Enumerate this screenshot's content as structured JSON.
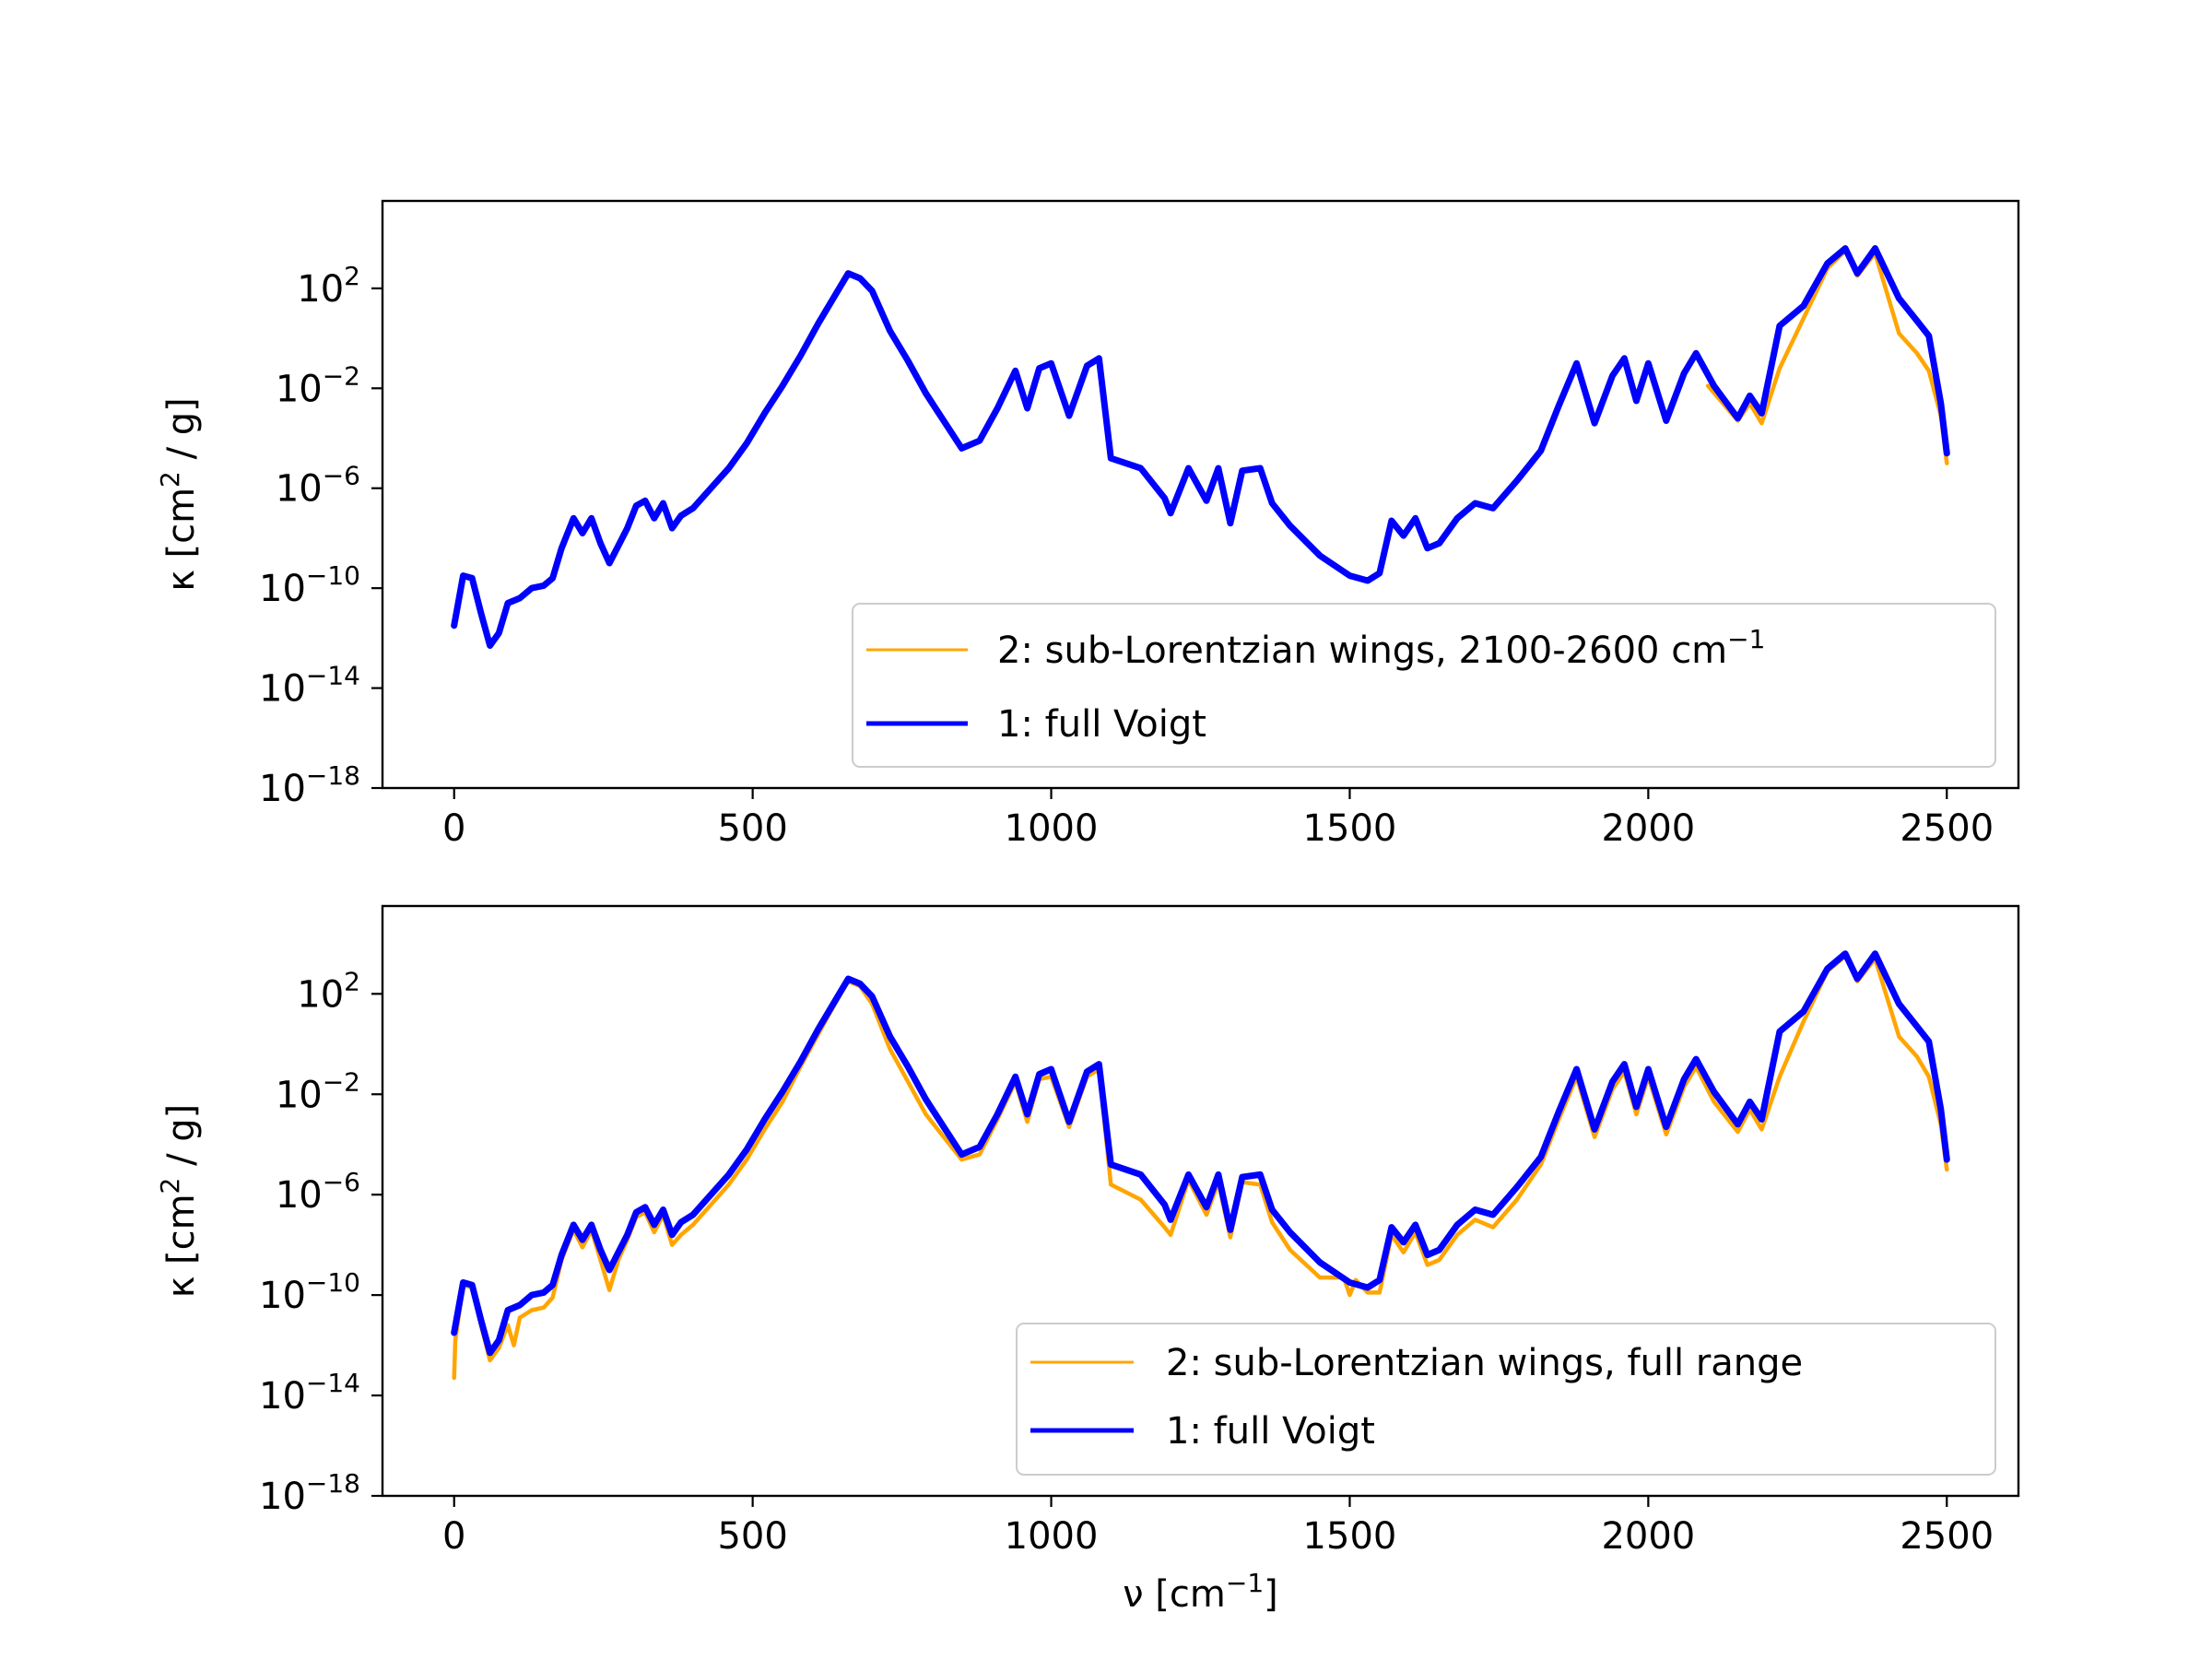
{
  "colors": {
    "voigt": "#0000ff",
    "sublorentz": "#ffa500"
  },
  "chart_data": [
    {
      "type": "line",
      "title": "",
      "xlabel": "",
      "ylabel": "κ [cm² / g]",
      "ylabel_parts": {
        "base": "κ [cm",
        "sup": "2",
        "rest": " / g]"
      },
      "xlim": [
        -120,
        2620
      ],
      "ylim": [
        -18,
        5.5
      ],
      "yscale": "log",
      "x_ticks": [
        0,
        500,
        1000,
        1500,
        2000,
        2500
      ],
      "x_tick_labels": [
        "0",
        "500",
        "1000",
        "1500",
        "2000",
        "2500"
      ],
      "y_ticks": [
        2,
        -2,
        -6,
        -10,
        -14,
        -18
      ],
      "y_tick_labels": [
        {
          "base": "10",
          "exp": "2"
        },
        {
          "base": "10",
          "exp": "−2"
        },
        {
          "base": "10",
          "exp": "−6"
        },
        {
          "base": "10",
          "exp": "−10"
        },
        {
          "base": "10",
          "exp": "−14"
        },
        {
          "base": "10",
          "exp": "−18"
        }
      ],
      "legend_position": "lower right",
      "legend": [
        {
          "label": "2: sub-Lorentzian wings, 2100-2600 cm",
          "sup": "−1",
          "color": "#ffa500"
        },
        {
          "label": "1: full Voigt",
          "sup": "",
          "color": "#0000ff"
        }
      ],
      "series": [
        {
          "name": "1: full Voigt",
          "color": "#0000ff",
          "x": [
            0,
            15,
            30,
            45,
            60,
            75,
            90,
            110,
            130,
            150,
            165,
            180,
            200,
            215,
            230,
            245,
            260,
            275,
            290,
            305,
            320,
            335,
            350,
            365,
            380,
            400,
            430,
            460,
            490,
            520,
            550,
            580,
            610,
            640,
            660,
            680,
            700,
            730,
            760,
            790,
            820,
            850,
            880,
            910,
            940,
            960,
            980,
            1000,
            1030,
            1060,
            1080,
            1100,
            1150,
            1190,
            1200,
            1230,
            1260,
            1280,
            1300,
            1320,
            1350,
            1370,
            1400,
            1450,
            1500,
            1530,
            1550,
            1570,
            1590,
            1610,
            1630,
            1650,
            1680,
            1710,
            1740,
            1780,
            1820,
            1850,
            1880,
            1910,
            1940,
            1960,
            1980,
            2000,
            2030,
            2060,
            2080,
            2110,
            2150,
            2170,
            2190,
            2220,
            2260,
            2300,
            2330,
            2350,
            2380,
            2420,
            2450,
            2470,
            2490,
            2500
          ],
          "y": [
            -11.5,
            -9.5,
            -9.6,
            -11.0,
            -12.3,
            -11.8,
            -10.6,
            -10.4,
            -10.0,
            -9.9,
            -9.6,
            -8.4,
            -7.2,
            -7.8,
            -7.2,
            -8.2,
            -9.0,
            -8.3,
            -7.6,
            -6.7,
            -6.5,
            -7.2,
            -6.6,
            -7.6,
            -7.1,
            -6.8,
            -6.0,
            -5.2,
            -4.2,
            -3.0,
            -1.9,
            -0.7,
            0.6,
            1.8,
            2.6,
            2.4,
            1.9,
            0.3,
            -0.9,
            -2.2,
            -3.3,
            -4.4,
            -4.1,
            -2.8,
            -1.3,
            -2.8,
            -1.2,
            -1.0,
            -3.1,
            -1.1,
            -0.8,
            -4.8,
            -5.2,
            -6.4,
            -7.0,
            -5.2,
            -6.5,
            -5.2,
            -7.4,
            -5.3,
            -5.2,
            -6.6,
            -7.5,
            -8.7,
            -9.5,
            -9.7,
            -9.4,
            -7.3,
            -7.9,
            -7.2,
            -8.4,
            -8.2,
            -7.2,
            -6.6,
            -6.8,
            -5.7,
            -4.5,
            -2.7,
            -1.0,
            -3.4,
            -1.5,
            -0.8,
            -2.5,
            -1.0,
            -3.3,
            -1.4,
            -0.6,
            -1.9,
            -3.2,
            -2.3,
            -3.0,
            0.5,
            1.3,
            3.0,
            3.6,
            2.6,
            3.6,
            1.6,
            0.7,
            0.1,
            -2.6,
            -4.6
          ]
        },
        {
          "name": "2: sub-Lorentzian wings, 2100-2600 cm⁻¹",
          "color": "#ffa500",
          "x": [
            2100,
            2150,
            2170,
            2190,
            2220,
            2260,
            2300,
            2330,
            2350,
            2380,
            2420,
            2450,
            2470,
            2490,
            2500
          ],
          "y": [
            -1.9,
            -3.3,
            -2.6,
            -3.4,
            -1.2,
            0.8,
            2.8,
            3.5,
            2.5,
            3.4,
            0.2,
            -0.6,
            -1.3,
            -3.1,
            -5.0
          ]
        }
      ]
    },
    {
      "type": "line",
      "title": "",
      "xlabel": "ν [cm⁻¹]",
      "xlabel_parts": {
        "base": "ν [cm",
        "sup": "−1",
        "rest": "]"
      },
      "ylabel": "κ [cm² / g]",
      "ylabel_parts": {
        "base": "κ [cm",
        "sup": "2",
        "rest": " / g]"
      },
      "xlim": [
        -120,
        2620
      ],
      "ylim": [
        -18,
        5.5
      ],
      "yscale": "log",
      "x_ticks": [
        0,
        500,
        1000,
        1500,
        2000,
        2500
      ],
      "x_tick_labels": [
        "0",
        "500",
        "1000",
        "1500",
        "2000",
        "2500"
      ],
      "y_ticks": [
        2,
        -2,
        -6,
        -10,
        -14,
        -18
      ],
      "y_tick_labels": [
        {
          "base": "10",
          "exp": "2"
        },
        {
          "base": "10",
          "exp": "−2"
        },
        {
          "base": "10",
          "exp": "−6"
        },
        {
          "base": "10",
          "exp": "−10"
        },
        {
          "base": "10",
          "exp": "−14"
        },
        {
          "base": "10",
          "exp": "−18"
        }
      ],
      "legend_position": "lower right",
      "legend": [
        {
          "label": "2: sub-Lorentzian wings, full range",
          "sup": "",
          "color": "#ffa500"
        },
        {
          "label": "1: full Voigt",
          "sup": "",
          "color": "#0000ff"
        }
      ],
      "series": [
        {
          "name": "1: full Voigt",
          "color": "#0000ff",
          "x": [
            0,
            15,
            30,
            45,
            60,
            75,
            90,
            110,
            130,
            150,
            165,
            180,
            200,
            215,
            230,
            245,
            260,
            275,
            290,
            305,
            320,
            335,
            350,
            365,
            380,
            400,
            430,
            460,
            490,
            520,
            550,
            580,
            610,
            640,
            660,
            680,
            700,
            730,
            760,
            790,
            820,
            850,
            880,
            910,
            940,
            960,
            980,
            1000,
            1030,
            1060,
            1080,
            1100,
            1150,
            1190,
            1200,
            1230,
            1260,
            1280,
            1300,
            1320,
            1350,
            1370,
            1400,
            1450,
            1500,
            1530,
            1550,
            1570,
            1590,
            1610,
            1630,
            1650,
            1680,
            1710,
            1740,
            1780,
            1820,
            1850,
            1880,
            1910,
            1940,
            1960,
            1980,
            2000,
            2030,
            2060,
            2080,
            2110,
            2150,
            2170,
            2190,
            2220,
            2260,
            2300,
            2330,
            2350,
            2380,
            2420,
            2450,
            2470,
            2490,
            2500
          ],
          "y": [
            -11.5,
            -9.5,
            -9.6,
            -11.0,
            -12.3,
            -11.8,
            -10.6,
            -10.4,
            -10.0,
            -9.9,
            -9.6,
            -8.4,
            -7.2,
            -7.8,
            -7.2,
            -8.2,
            -9.0,
            -8.3,
            -7.6,
            -6.7,
            -6.5,
            -7.2,
            -6.6,
            -7.6,
            -7.1,
            -6.8,
            -6.0,
            -5.2,
            -4.2,
            -3.0,
            -1.9,
            -0.7,
            0.6,
            1.8,
            2.6,
            2.4,
            1.9,
            0.3,
            -0.9,
            -2.2,
            -3.3,
            -4.4,
            -4.1,
            -2.8,
            -1.3,
            -2.8,
            -1.2,
            -1.0,
            -3.1,
            -1.1,
            -0.8,
            -4.8,
            -5.2,
            -6.4,
            -7.0,
            -5.2,
            -6.5,
            -5.2,
            -7.4,
            -5.3,
            -5.2,
            -6.6,
            -7.5,
            -8.7,
            -9.5,
            -9.7,
            -9.4,
            -7.3,
            -7.9,
            -7.2,
            -8.4,
            -8.2,
            -7.2,
            -6.6,
            -6.8,
            -5.7,
            -4.5,
            -2.7,
            -1.0,
            -3.4,
            -1.5,
            -0.8,
            -2.5,
            -1.0,
            -3.3,
            -1.4,
            -0.6,
            -1.9,
            -3.2,
            -2.3,
            -3.0,
            0.5,
            1.3,
            3.0,
            3.6,
            2.6,
            3.6,
            1.6,
            0.7,
            0.1,
            -2.6,
            -4.6
          ]
        },
        {
          "name": "2: sub-Lorentzian wings, full range",
          "color": "#ffa500",
          "x": [
            0,
            2,
            15,
            30,
            45,
            60,
            75,
            90,
            100,
            110,
            130,
            150,
            165,
            180,
            200,
            215,
            230,
            245,
            260,
            275,
            290,
            305,
            320,
            335,
            350,
            365,
            380,
            400,
            430,
            460,
            490,
            520,
            550,
            580,
            610,
            640,
            660,
            680,
            700,
            730,
            760,
            790,
            820,
            850,
            880,
            910,
            940,
            960,
            980,
            1000,
            1030,
            1060,
            1080,
            1100,
            1150,
            1190,
            1200,
            1230,
            1260,
            1280,
            1300,
            1320,
            1350,
            1370,
            1400,
            1450,
            1490,
            1500,
            1510,
            1530,
            1550,
            1570,
            1590,
            1610,
            1630,
            1650,
            1680,
            1710,
            1740,
            1780,
            1820,
            1850,
            1880,
            1910,
            1940,
            1960,
            1980,
            2000,
            2030,
            2060,
            2080,
            2110,
            2150,
            2170,
            2190,
            2220,
            2260,
            2300,
            2330,
            2350,
            2380,
            2420,
            2450,
            2470,
            2490,
            2500
          ],
          "y": [
            -13.3,
            -11.8,
            -9.6,
            -9.7,
            -11.2,
            -12.6,
            -12.1,
            -11.2,
            -12.0,
            -10.9,
            -10.6,
            -10.5,
            -10.1,
            -8.6,
            -7.4,
            -8.1,
            -7.4,
            -8.6,
            -9.8,
            -8.6,
            -7.8,
            -6.9,
            -6.7,
            -7.5,
            -6.8,
            -8.0,
            -7.6,
            -7.2,
            -6.4,
            -5.6,
            -4.6,
            -3.4,
            -2.3,
            -0.9,
            0.4,
            1.7,
            2.5,
            2.3,
            1.6,
            -0.2,
            -1.5,
            -2.8,
            -3.7,
            -4.6,
            -4.4,
            -3.0,
            -1.5,
            -3.1,
            -1.4,
            -1.3,
            -3.3,
            -1.3,
            -1.0,
            -5.6,
            -6.2,
            -7.3,
            -7.6,
            -5.4,
            -6.8,
            -5.5,
            -7.7,
            -5.5,
            -5.6,
            -7.1,
            -8.2,
            -9.3,
            -9.3,
            -10.0,
            -9.4,
            -9.9,
            -9.9,
            -7.6,
            -8.3,
            -7.5,
            -8.8,
            -8.6,
            -7.6,
            -7.0,
            -7.3,
            -6.2,
            -4.8,
            -3.0,
            -1.3,
            -3.7,
            -1.8,
            -1.1,
            -2.8,
            -1.3,
            -3.6,
            -1.7,
            -0.9,
            -2.3,
            -3.5,
            -2.6,
            -3.4,
            -1.3,
            0.9,
            2.9,
            3.5,
            2.5,
            3.4,
            0.3,
            -0.5,
            -1.3,
            -3.2,
            -5.0
          ]
        }
      ]
    }
  ]
}
